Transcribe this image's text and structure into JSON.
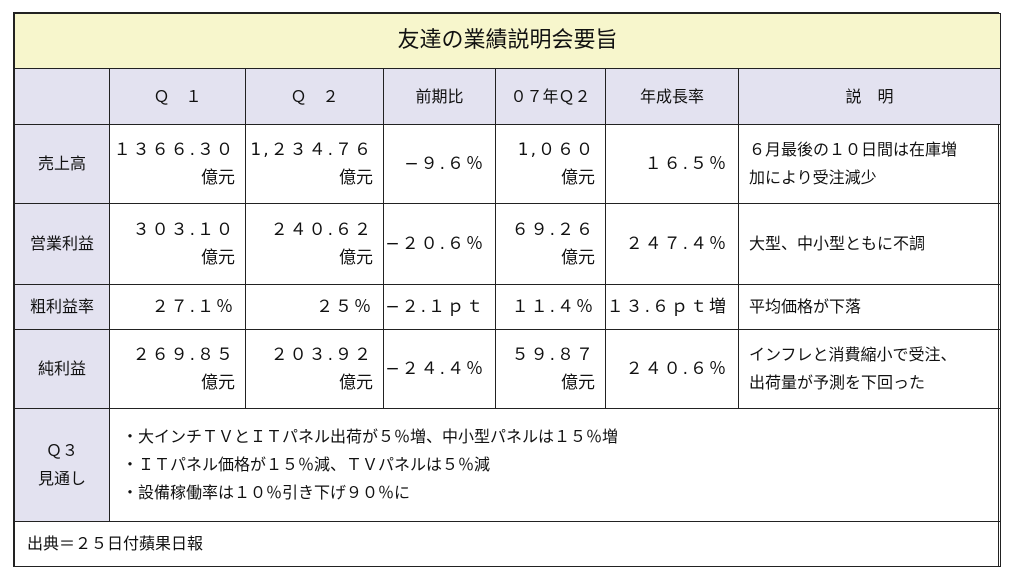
{
  "title": "友達の業績説明会要旨",
  "headers": [
    "",
    "Ｑ　１",
    "Ｑ　２",
    "前期比",
    "０７年Ｑ２",
    "年成長率",
    "説　明"
  ],
  "rows": [
    {
      "label": "売上高",
      "q1": {
        "value": "１３６６.３０",
        "unit": "億元"
      },
      "q2": {
        "value": "1,２３４.７６",
        "unit": "億元"
      },
      "qoq": "−９.６％",
      "q2_07": {
        "value": "1,０６０",
        "unit": "億元"
      },
      "yoy": "１６.５％",
      "note": [
        "６月最後の１０日間は在庫増",
        "加により受注減少"
      ]
    },
    {
      "label": "営業利益",
      "q1": {
        "value": "３０３.１０",
        "unit": "億元"
      },
      "q2": {
        "value": "２４０.６２",
        "unit": "億元"
      },
      "qoq": "−２０.６％",
      "q2_07": {
        "value": "６９.２６",
        "unit": "億元"
      },
      "yoy": "２４７.４％",
      "note": [
        "大型、中小型ともに不調"
      ]
    },
    {
      "label": "粗利益率",
      "q1": {
        "value": "２７.１％",
        "unit": ""
      },
      "q2": {
        "value": "２５％",
        "unit": ""
      },
      "qoq": "−２.１ｐｔ",
      "q2_07": {
        "value": "１１.４％",
        "unit": ""
      },
      "yoy": "１３.６ｐｔ増",
      "note": [
        "平均価格が下落"
      ]
    },
    {
      "label": "純利益",
      "q1": {
        "value": "２６９.８５",
        "unit": "億元"
      },
      "q2": {
        "value": "２０３.９２",
        "unit": "億元"
      },
      "qoq": "−２４.４％",
      "q2_07": {
        "value": "５９.８７",
        "unit": "億元"
      },
      "yoy": "２４０.６％",
      "note": [
        "インフレと消費縮小で受注、",
        "出荷量が予測を下回った"
      ]
    }
  ],
  "outlook": {
    "label_line1": "Ｑ３",
    "label_line2": "見通し",
    "items": [
      "・大インチＴＶとＩＴパネル出荷が５％増、中小型パネルは１５％増",
      "・ＩＴパネル価格が１５％減、ＴＶパネルは５％減",
      "・設備稼働率は１０％引き下げ９０％に"
    ]
  },
  "source": "出典＝２５日付蘋果日報"
}
